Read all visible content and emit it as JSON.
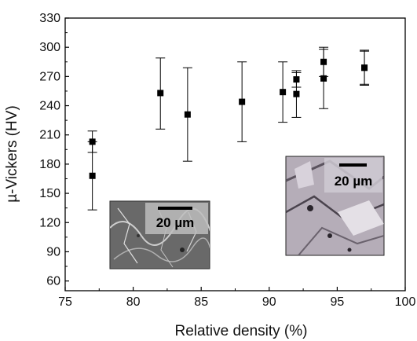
{
  "chart_data": {
    "type": "scatter",
    "title": "",
    "xlabel": "Relative density (%)",
    "ylabel": "µ-Vickers (HV)",
    "xlim": [
      75,
      100
    ],
    "ylim": [
      50,
      330
    ],
    "xticks": [
      75,
      80,
      85,
      90,
      95,
      100
    ],
    "yticks": [
      60,
      90,
      120,
      150,
      180,
      210,
      240,
      270,
      300,
      330
    ],
    "grid": false,
    "marker": "square",
    "marker_color": "#000000",
    "points": [
      {
        "x": 77,
        "y": 203,
        "err_low": 192,
        "err_high": 214
      },
      {
        "x": 77,
        "y": 168,
        "err_low": 133,
        "err_high": 203
      },
      {
        "x": 82,
        "y": 253,
        "err_low": 216,
        "err_high": 289
      },
      {
        "x": 84,
        "y": 231,
        "err_low": 183,
        "err_high": 279
      },
      {
        "x": 88,
        "y": 244,
        "err_low": 203,
        "err_high": 285
      },
      {
        "x": 91,
        "y": 254,
        "err_low": 223,
        "err_high": 285
      },
      {
        "x": 92,
        "y": 267,
        "err_low": 259,
        "err_high": 276
      },
      {
        "x": 92,
        "y": 252,
        "err_low": 228,
        "err_high": 274
      },
      {
        "x": 94,
        "y": 285,
        "err_low": 270,
        "err_high": 300
      },
      {
        "x": 94,
        "y": 268,
        "err_low": 237,
        "err_high": 298
      },
      {
        "x": 97,
        "y": 279,
        "err_low": 261,
        "err_high": 297
      },
      {
        "x": 97,
        "y": 279,
        "err_low": 262,
        "err_high": 296
      }
    ],
    "annotations": [
      {
        "kind": "micrograph-inset",
        "scale_bar_label": "20 µm"
      },
      {
        "kind": "micrograph-inset",
        "scale_bar_label": "20 µm"
      }
    ]
  }
}
